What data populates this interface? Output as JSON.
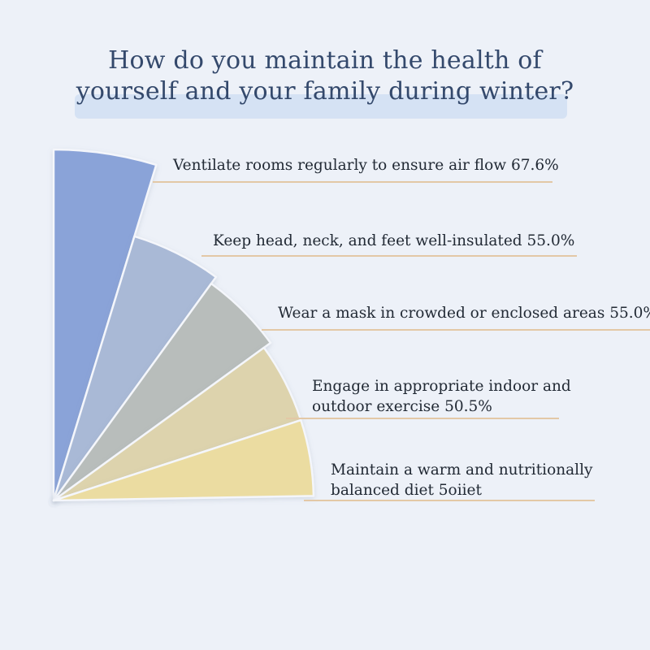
{
  "title": {
    "line1": "How do you maintain the health of",
    "line2": "yourself and your family during winter?"
  },
  "chart_data": {
    "type": "pie",
    "title": "How do you maintain the health of yourself and your family during winter?",
    "categories": [
      "Ventilate rooms regularly to ensure air flow",
      "Keep head, neck, and feet well-insulated",
      "Wear a mask in crowded or enclosed areas",
      "Engage in appropriate indoor and outdoor exercise",
      "Maintain a warm and nutritionally balanced diet"
    ],
    "values": [
      67.6,
      55.0,
      55.0,
      50.5,
      null
    ],
    "colors": [
      "#8aa3d8",
      "#a9b9d6",
      "#b8bdbb",
      "#ddd3ad",
      "#ebdca1"
    ],
    "labels": [
      {
        "lines": [
          "Ventilate rooms regularly to ensure air flow 67.6%"
        ]
      },
      {
        "lines": [
          "Keep head, neck, and feet well-insulated 55.0%"
        ]
      },
      {
        "lines": [
          "Wear a mask in crowded or enclosed areas 55.0%"
        ]
      },
      {
        "lines": [
          "Engage in appropriate indoor and",
          "outdoor exercise 50.5%"
        ]
      },
      {
        "lines": [
          "Maintain a warm and nutritionally",
          "balanced diet 5oiiet"
        ]
      }
    ]
  }
}
